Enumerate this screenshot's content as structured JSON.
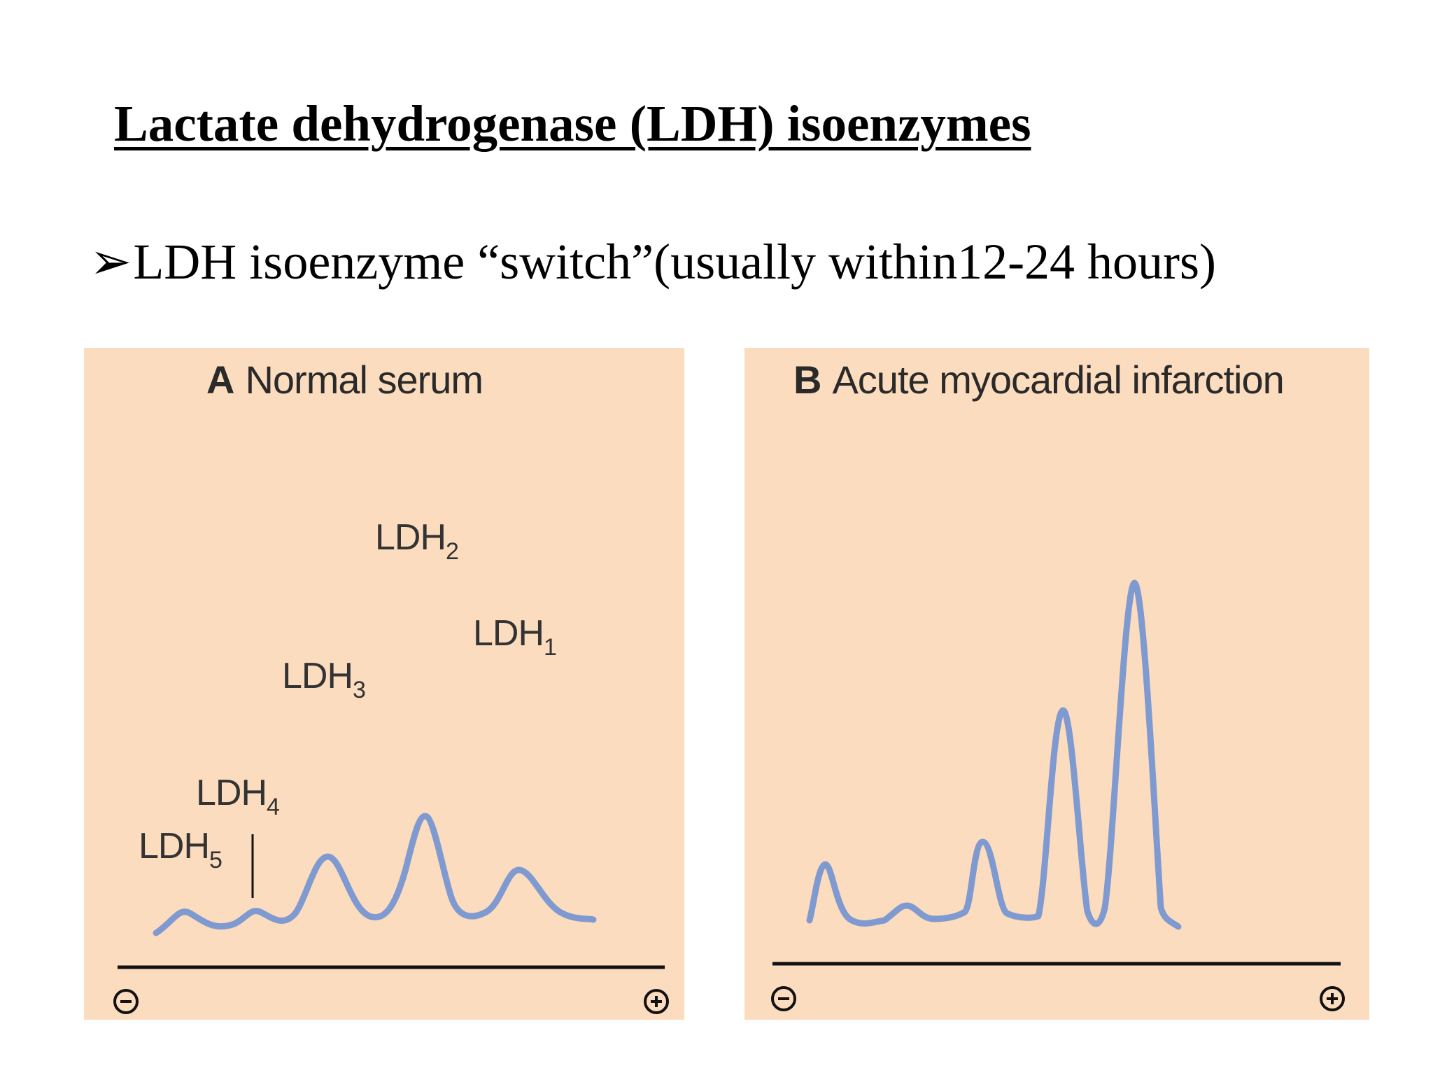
{
  "slide": {
    "title": "Lactate dehydrogenase (LDH) isoenzymes",
    "bullet_marker": "➢",
    "bullet_text": "LDH isoenzyme “switch”(usually within12-24 hours)"
  },
  "figure": {
    "panel_a": {
      "letter": "A",
      "heading": "Normal serum",
      "labels": {
        "ldh1": {
          "base": "LDH",
          "sub": "1"
        },
        "ldh2": {
          "base": "LDH",
          "sub": "2"
        },
        "ldh3": {
          "base": "LDH",
          "sub": "3"
        },
        "ldh4": {
          "base": "LDH",
          "sub": "4"
        },
        "ldh5": {
          "base": "LDH",
          "sub": "5"
        }
      },
      "cathode_symbol": "minus-circle-icon",
      "anode_symbol": "plus-circle-icon"
    },
    "panel_b": {
      "letter": "B",
      "heading": "Acute myocardial infarction",
      "cathode_symbol": "minus-circle-icon",
      "anode_symbol": "plus-circle-icon"
    },
    "colors": {
      "panel_background": "#fcdcbe",
      "trace": "#7f9ad0",
      "axis": "#111111"
    }
  }
}
